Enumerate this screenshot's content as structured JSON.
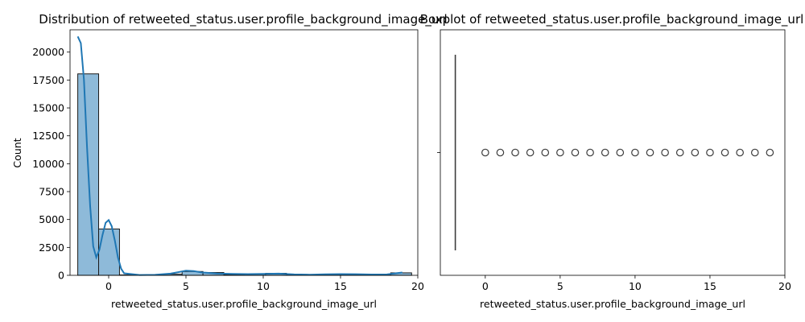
{
  "chart_data": [
    {
      "type": "bar",
      "subtype": "histogram-with-kde",
      "title": "Distribution of retweeted_status.user.profile_background_image_url",
      "xlabel": "retweeted_status.user.profile_background_image_url",
      "ylabel": "Count",
      "xlim": [
        -2.5,
        20
      ],
      "ylim": [
        0,
        22000
      ],
      "xticks": [
        0,
        5,
        10,
        15,
        20
      ],
      "yticks": [
        0,
        2500,
        5000,
        7500,
        10000,
        12500,
        15000,
        17500,
        20000
      ],
      "bins": [
        {
          "x0": -2.0,
          "x1": -0.65,
          "count": 18050
        },
        {
          "x0": -0.65,
          "x1": 0.7,
          "count": 4150
        },
        {
          "x0": 0.7,
          "x1": 2.05,
          "count": 30
        },
        {
          "x0": 2.05,
          "x1": 3.4,
          "count": 40
        },
        {
          "x0": 3.4,
          "x1": 4.75,
          "count": 100
        },
        {
          "x0": 4.75,
          "x1": 6.1,
          "count": 340
        },
        {
          "x0": 6.1,
          "x1": 7.45,
          "count": 250
        },
        {
          "x0": 7.45,
          "x1": 8.8,
          "count": 60
        },
        {
          "x0": 8.8,
          "x1": 10.15,
          "count": 120
        },
        {
          "x0": 10.15,
          "x1": 11.5,
          "count": 180
        },
        {
          "x0": 11.5,
          "x1": 12.85,
          "count": 40
        },
        {
          "x0": 12.85,
          "x1": 14.2,
          "count": 70
        },
        {
          "x0": 14.2,
          "x1": 15.55,
          "count": 100
        },
        {
          "x0": 15.55,
          "x1": 16.9,
          "count": 90
        },
        {
          "x0": 16.9,
          "x1": 18.25,
          "count": 40
        },
        {
          "x0": 18.25,
          "x1": 19.6,
          "count": 220
        }
      ],
      "kde": {
        "x": [
          -2.0,
          -1.8,
          -1.6,
          -1.4,
          -1.2,
          -1.0,
          -0.8,
          -0.6,
          -0.4,
          -0.2,
          0.0,
          0.2,
          0.4,
          0.6,
          0.8,
          1.0,
          2.0,
          3.0,
          4.0,
          4.5,
          5.0,
          5.5,
          6.0,
          7.0,
          8.0,
          9.0,
          10.0,
          11.0,
          12.0,
          13.0,
          14.0,
          15.0,
          16.0,
          17.0,
          18.0,
          19.0
        ],
        "y": [
          21400,
          20800,
          17500,
          11500,
          6200,
          2600,
          1600,
          2300,
          3600,
          4700,
          4950,
          4400,
          3100,
          1600,
          600,
          180,
          30,
          40,
          150,
          280,
          420,
          380,
          260,
          160,
          120,
          110,
          130,
          150,
          80,
          60,
          90,
          110,
          100,
          70,
          80,
          250
        ]
      },
      "colors": {
        "bar_fill": "#8ebad9",
        "bar_edge": "#1a1a1a",
        "kde_line": "#1f77b4"
      }
    },
    {
      "type": "boxplot",
      "title": "Boxplot of retweeted_status.user.profile_background_image_url",
      "xlabel": "retweeted_status.user.profile_background_image_url",
      "ylabel": "",
      "xlim": [
        -3,
        20
      ],
      "xticks": [
        0,
        5,
        10,
        15,
        20
      ],
      "box": {
        "min": -2,
        "q1": -2,
        "median": -2,
        "q3": -2,
        "max": -2
      },
      "outliers": [
        0,
        1,
        2,
        3,
        4,
        5,
        6,
        7,
        8,
        9,
        10,
        11,
        12,
        13,
        14,
        15,
        16,
        17,
        18,
        19
      ],
      "colors": {
        "box_line": "#3d3d3d",
        "outlier_edge": "#3d3d3d"
      }
    }
  ]
}
